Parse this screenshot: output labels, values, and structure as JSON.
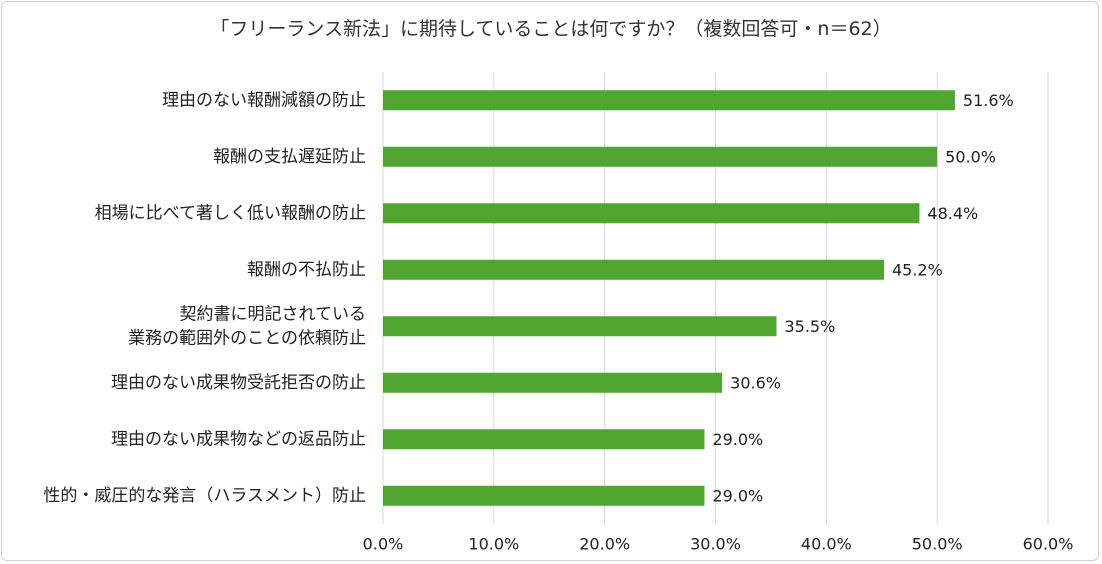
{
  "chart_data": {
    "type": "bar",
    "orientation": "horizontal",
    "title": "「フリーランス新法」に期待していることは何ですか？（複数回答可・n＝62）",
    "categories": [
      [
        "理由のない報酬減額の防止"
      ],
      [
        "報酬の支払遅延防止"
      ],
      [
        "相場に比べて著しく低い報酬の防止"
      ],
      [
        "報酬の不払防止"
      ],
      [
        "契約書に明記されている",
        "業務の範囲外のことの依頼防止"
      ],
      [
        "理由のない成果物受託拒否の防止"
      ],
      [
        "理由のない成果物などの返品防止"
      ],
      [
        "性的・威圧的な発言（ハラスメント）防止"
      ]
    ],
    "values": [
      51.6,
      50.0,
      48.4,
      45.2,
      35.5,
      30.6,
      29.0,
      29.0
    ],
    "value_labels": [
      "51.6%",
      "50.0%",
      "48.4%",
      "45.2%",
      "35.5%",
      "30.6%",
      "29.0%",
      "29.0%"
    ],
    "xlim": [
      0,
      60
    ],
    "ticks": [
      0,
      10,
      20,
      30,
      40,
      50,
      60
    ],
    "tick_labels": [
      "0.0%",
      "10.0%",
      "20.0%",
      "30.0%",
      "40.0%",
      "50.0%",
      "60.0%"
    ],
    "grid": true,
    "bar_color": "#4fa52f",
    "grid_color": "#d9d9d9"
  }
}
